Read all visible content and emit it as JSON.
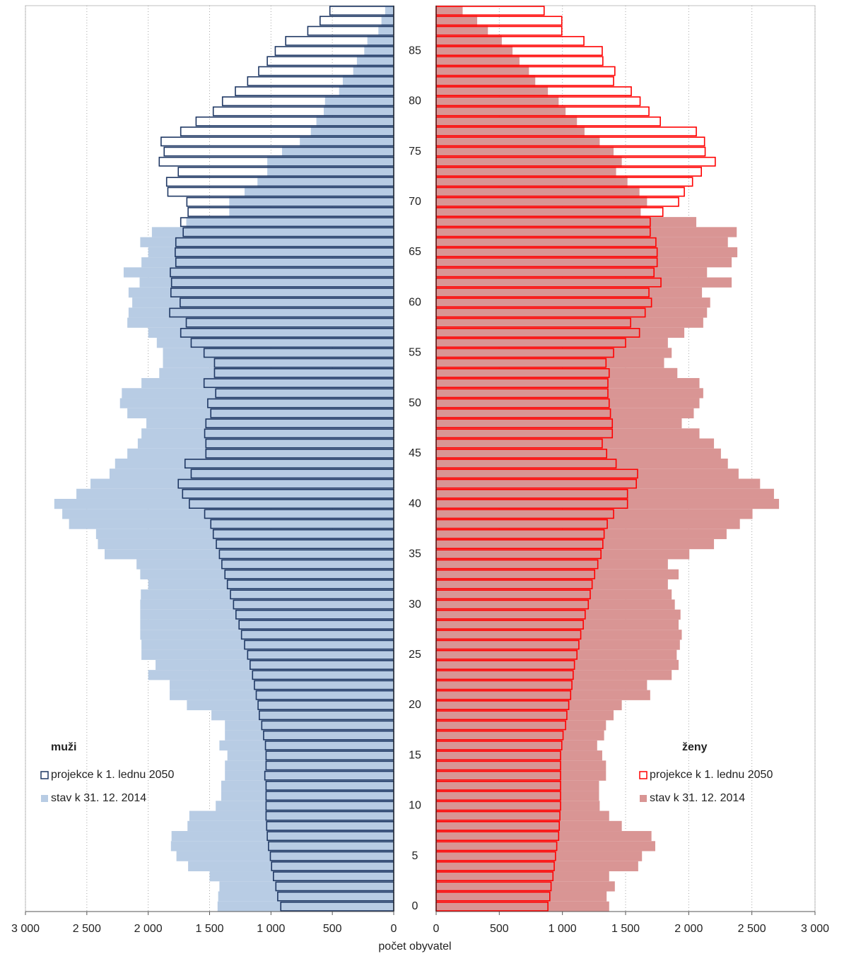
{
  "chart_data": {
    "type": "pyramid",
    "xlabel": "počet obyvatel",
    "xlim": [
      0,
      3000
    ],
    "xticks": [
      0,
      500,
      {
        "value": 1000,
        "label": "1 000"
      },
      {
        "value": 1500,
        "label": "1 500"
      },
      {
        "value": 2000,
        "label": "2 000"
      },
      {
        "value": 2500,
        "label": "2 500"
      },
      {
        "value": 3000,
        "label": "3 000"
      }
    ],
    "grid": true,
    "categories": [
      0,
      null,
      null,
      null,
      null,
      5,
      null,
      null,
      null,
      null,
      10,
      null,
      null,
      null,
      null,
      15,
      null,
      null,
      null,
      null,
      20,
      null,
      null,
      null,
      null,
      25,
      null,
      null,
      null,
      null,
      30,
      null,
      null,
      null,
      null,
      35,
      null,
      null,
      null,
      null,
      40,
      null,
      null,
      null,
      null,
      45,
      null,
      null,
      null,
      null,
      50,
      null,
      null,
      null,
      null,
      55,
      null,
      null,
      null,
      null,
      60,
      null,
      null,
      null,
      null,
      65,
      null,
      null,
      null,
      null,
      70,
      null,
      null,
      null,
      null,
      75,
      null,
      null,
      null,
      null,
      80,
      null,
      null,
      null,
      null,
      85,
      null,
      null,
      null,
      null
    ],
    "panels": [
      {
        "title": "muži",
        "side": "left",
        "series": [
          {
            "name": "stav k 31. 12. 2014",
            "color": "#b8cce4",
            "style": "filled",
            "values": [
              1435,
              1430,
              1420,
              1500,
              1675,
              1770,
              1815,
              1810,
              1680,
              1665,
              1450,
              1405,
              1405,
              1375,
              1375,
              1355,
              1420,
              1375,
              1375,
              1485,
              1685,
              1825,
              1825,
              2000,
              1940,
              2055,
              2055,
              2065,
              2065,
              2065,
              2065,
              2060,
              2000,
              2065,
              2095,
              2355,
              2410,
              2425,
              2645,
              2700,
              2765,
              2585,
              2470,
              2315,
              2270,
              2170,
              2085,
              2055,
              2015,
              2170,
              2230,
              2215,
              2055,
              1910,
              1880,
              1880,
              1930,
              2000,
              2170,
              2160,
              2130,
              2160,
              2070,
              2200,
              2055,
              2000,
              2065,
              1970,
              1690,
              1340,
              1340,
              1215,
              1110,
              1030,
              1030,
              910,
              765,
              675,
              630,
              570,
              560,
              445,
              415,
              330,
              300,
              240,
              215,
              125,
              100,
              70
            ]
          },
          {
            "name": "projekce k 1. lednu 2050",
            "color": "#1f3864",
            "style": "outline",
            "values": [
              920,
              945,
              960,
              980,
              995,
              1005,
              1020,
              1030,
              1035,
              1040,
              1040,
              1040,
              1040,
              1050,
              1040,
              1040,
              1045,
              1060,
              1075,
              1095,
              1105,
              1120,
              1135,
              1150,
              1170,
              1190,
              1215,
              1240,
              1260,
              1285,
              1305,
              1330,
              1355,
              1375,
              1400,
              1420,
              1445,
              1470,
              1490,
              1540,
              1665,
              1720,
              1755,
              1650,
              1700,
              1530,
              1530,
              1540,
              1530,
              1490,
              1515,
              1450,
              1545,
              1460,
              1460,
              1545,
              1650,
              1735,
              1690,
              1825,
              1740,
              1815,
              1810,
              1820,
              1775,
              1780,
              1775,
              1715,
              1735,
              1675,
              1685,
              1840,
              1850,
              1755,
              1910,
              1870,
              1895,
              1735,
              1610,
              1470,
              1395,
              1290,
              1190,
              1100,
              1030,
              965,
              880,
              700,
              600,
              520
            ]
          }
        ]
      },
      {
        "title": "ženy",
        "side": "right",
        "series": [
          {
            "name": "stav k 31. 12. 2014",
            "color": "#d99594",
            "style": "filled",
            "values": [
              1370,
              1350,
              1415,
              1370,
              1600,
              1630,
              1735,
              1705,
              1470,
              1370,
              1295,
              1290,
              1290,
              1345,
              1345,
              1315,
              1275,
              1330,
              1345,
              1405,
              1470,
              1695,
              1670,
              1865,
              1920,
              1905,
              1930,
              1945,
              1920,
              1935,
              1890,
              1865,
              1835,
              1920,
              1835,
              2005,
              2200,
              2300,
              2405,
              2505,
              2715,
              2675,
              2565,
              2395,
              2310,
              2255,
              2200,
              2085,
              1945,
              2040,
              2085,
              2115,
              2085,
              1910,
              1805,
              1865,
              1835,
              1965,
              2115,
              2145,
              2170,
              2105,
              2340,
              2145,
              2340,
              2385,
              2310,
              2380,
              2060,
              1620,
              1670,
              1610,
              1515,
              1425,
              1470,
              1405,
              1295,
              1175,
              1115,
              1025,
              970,
              885,
              785,
              735,
              660,
              605,
              520,
              410,
              325,
              210
            ]
          },
          {
            "name": "projekce k 1. lednu 2050",
            "color": "#ff0000",
            "style": "outline",
            "values": [
              885,
              900,
              910,
              925,
              935,
              945,
              955,
              970,
              975,
              980,
              985,
              985,
              985,
              985,
              985,
              985,
              995,
              1005,
              1025,
              1035,
              1050,
              1065,
              1075,
              1085,
              1095,
              1115,
              1130,
              1145,
              1165,
              1180,
              1205,
              1220,
              1235,
              1255,
              1280,
              1305,
              1320,
              1330,
              1355,
              1405,
              1515,
              1515,
              1585,
              1595,
              1425,
              1350,
              1315,
              1395,
              1395,
              1380,
              1370,
              1360,
              1360,
              1370,
              1345,
              1405,
              1500,
              1610,
              1540,
              1655,
              1705,
              1685,
              1780,
              1725,
              1750,
              1750,
              1740,
              1695,
              1695,
              1795,
              1920,
              1965,
              2030,
              2100,
              2210,
              2130,
              2125,
              2060,
              1775,
              1685,
              1615,
              1545,
              1405,
              1415,
              1320,
              1315,
              1170,
              995,
              995,
              855
            ]
          }
        ]
      }
    ]
  }
}
